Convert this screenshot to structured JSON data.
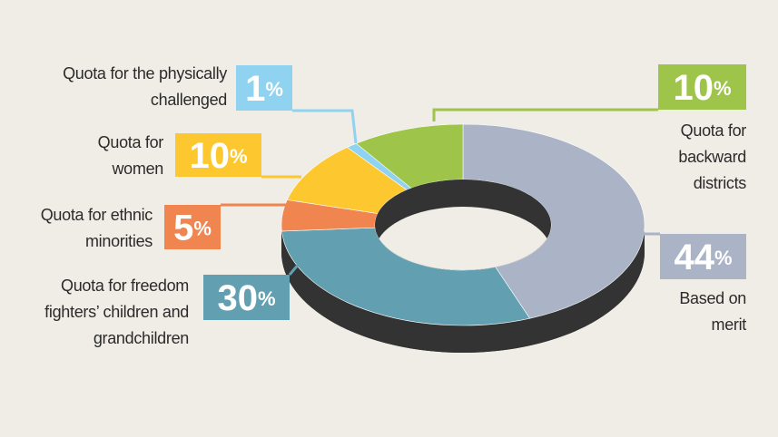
{
  "chart_data": {
    "type": "donut",
    "categories": [
      [
        "Based on",
        "merit"
      ],
      [
        "Quota for freedom",
        "fighters’ children and",
        "grandchildren"
      ],
      [
        "Quota for ethnic",
        "minorities"
      ],
      [
        "Quota for",
        "women"
      ],
      [
        "Quota for the physically",
        "challenged"
      ],
      [
        "Quota for",
        "backward",
        "districts"
      ]
    ],
    "values": [
      44,
      30,
      5,
      10,
      1,
      10
    ],
    "value_labels": [
      "44%",
      "30%",
      "5%",
      "10%",
      "1%",
      "10%"
    ],
    "colors": [
      "#aab4c6",
      "#62a0b1",
      "#f0854f",
      "#fdc82f",
      "#8fd3f0",
      "#9ec449"
    ]
  }
}
